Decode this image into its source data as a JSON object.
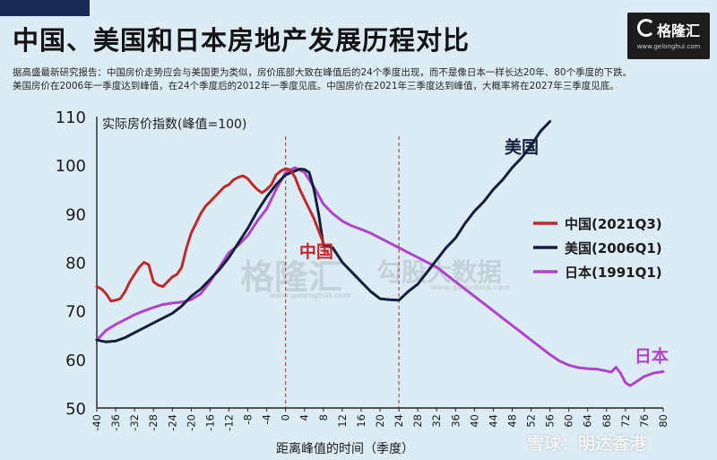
{
  "header": {
    "title": "中国、美国和日本房地产发展历程对比",
    "desc_line1": "据高盛最新研究报告：中国房价走势应会与美国更为类似，房价底部大致在峰值后的24个季度出现，而不是像日本一样长达20年、80个季度的下跌。",
    "desc_line2": "美国房价在2006年一季度达到峰值，在24个季度后的2012年一季度见底。中国房价在2021年三季度达到峰值，大概率将在2027年三季度见底。"
  },
  "logo": {
    "name": "格隆汇",
    "url": "www.gelonghui.com"
  },
  "watermarks": {
    "gelonghui": "格隆汇",
    "gelonghui_url": "www.gelonghui.com",
    "gogudata": "勾股大数据",
    "gogudata_url": "www.gogudata.com",
    "footer": "雪球：明达香港"
  },
  "chart_data": {
    "type": "line",
    "ylabel": "实际房价指数(峰值=100)",
    "xlabel": "距离峰值的时间（季度）",
    "xlim": [
      -40,
      80
    ],
    "ylim": [
      50,
      110
    ],
    "xticks": [
      -40,
      -36,
      -32,
      -28,
      -24,
      -20,
      -16,
      -12,
      -8,
      -4,
      0,
      4,
      8,
      12,
      16,
      20,
      24,
      28,
      32,
      36,
      40,
      44,
      48,
      52,
      56,
      60,
      64,
      68,
      72,
      76,
      80
    ],
    "yticks": [
      50,
      60,
      70,
      80,
      90,
      100,
      110
    ],
    "reference_lines_x": [
      0,
      24
    ],
    "colors": {
      "china": "#c0282d",
      "usa": "#141f3d",
      "japan": "#b043c8"
    },
    "series": [
      {
        "name": "中国(2021Q3)",
        "x": [
          -40,
          -39,
          -38,
          -37,
          -36,
          -35,
          -34,
          -33,
          -32,
          -31,
          -30,
          -29,
          -28,
          -27,
          -26,
          -25,
          -24,
          -23,
          -22,
          -21,
          -20,
          -19,
          -18,
          -17,
          -16,
          -15,
          -14,
          -13,
          -12,
          -11,
          -10,
          -9,
          -8,
          -7,
          -6,
          -5,
          -4,
          -3,
          -2,
          -1,
          0,
          1,
          2,
          3,
          4,
          5,
          6,
          7,
          8
        ],
        "y": [
          75,
          74.5,
          73.5,
          72,
          72.2,
          72.5,
          74,
          76,
          77.5,
          79,
          80,
          79.5,
          76,
          75.3,
          75,
          76,
          77,
          77.5,
          79,
          83,
          86,
          88,
          90,
          91.5,
          92.5,
          93.5,
          94.5,
          95.5,
          96,
          97,
          97.5,
          97.8,
          97.2,
          96,
          95,
          94.3,
          95,
          96,
          98,
          98.8,
          99.3,
          99,
          97.5,
          95,
          93,
          91,
          89,
          86.5,
          84
        ]
      },
      {
        "name": "美国(2006Q1)",
        "x": [
          -40,
          -38,
          -36,
          -34,
          -32,
          -30,
          -28,
          -26,
          -24,
          -22,
          -20,
          -18,
          -16,
          -14,
          -12,
          -10,
          -8,
          -6,
          -4,
          -2,
          0,
          2,
          3,
          4,
          5,
          6,
          7,
          8,
          10,
          12,
          14,
          16,
          18,
          20,
          22,
          24,
          26,
          28,
          30,
          32,
          34,
          36,
          38,
          40,
          42,
          44,
          46,
          48,
          50,
          52,
          54,
          56
        ],
        "y": [
          64,
          63.6,
          63.8,
          64.5,
          65.5,
          66.5,
          67.5,
          68.5,
          69.5,
          71,
          73,
          74.5,
          76.5,
          78.5,
          81,
          84,
          87,
          90.5,
          93.5,
          96,
          98,
          98.8,
          99.2,
          99.1,
          98.5,
          95,
          90,
          83.5,
          83,
          80,
          78,
          76,
          74,
          72.5,
          72.3,
          72.2,
          74,
          75.5,
          78,
          80.5,
          83,
          85,
          88,
          90.5,
          92.5,
          95,
          97,
          99.5,
          101.5,
          104,
          107,
          109
        ]
      },
      {
        "name": "日本(1991Q1)",
        "x": [
          -40,
          -38,
          -36,
          -34,
          -32,
          -30,
          -28,
          -26,
          -24,
          -22,
          -20,
          -18,
          -16,
          -14,
          -12,
          -10,
          -8,
          -6,
          -4,
          -2,
          0,
          2,
          4,
          6,
          8,
          10,
          12,
          14,
          16,
          18,
          20,
          22,
          24,
          26,
          28,
          30,
          32,
          34,
          36,
          38,
          40,
          42,
          44,
          46,
          48,
          50,
          52,
          54,
          56,
          58,
          60,
          62,
          64,
          66,
          68,
          69,
          70,
          71,
          72,
          73,
          74,
          76,
          78,
          80
        ],
        "y": [
          64,
          66,
          67.2,
          68.2,
          69.2,
          70,
          70.7,
          71.3,
          71.6,
          71.8,
          72.3,
          73.5,
          76,
          79,
          82,
          83.5,
          85.5,
          88.5,
          91,
          95,
          98.5,
          99.5,
          98.5,
          95.5,
          92,
          90,
          88.5,
          87.5,
          86.8,
          86,
          85,
          84,
          83,
          82,
          81,
          80,
          79,
          77.5,
          76,
          74.5,
          73,
          71.5,
          70,
          68.5,
          67,
          65.5,
          64,
          62.5,
          61,
          59.7,
          58.8,
          58.3,
          58.1,
          58,
          57.6,
          57.4,
          58.4,
          57.1,
          55.2,
          54.6,
          55.2,
          56.5,
          57.2,
          57.5
        ]
      }
    ],
    "legend": {
      "placement": "right",
      "entries": [
        {
          "label": "中国(2021Q3)",
          "color": "#c0282d"
        },
        {
          "label": "美国(2006Q1)",
          "color": "#141f3d"
        },
        {
          "label": "日本(1991Q1)",
          "color": "#b043c8"
        }
      ]
    },
    "annotations": [
      {
        "text": "中国",
        "color": "#c0282d",
        "x": 6.5,
        "y": 81
      },
      {
        "text": "美国",
        "color": "#141f3d",
        "x": 50,
        "y": 102.5
      },
      {
        "text": "日本",
        "color": "#b043c8",
        "x": 77.5,
        "y": 59.5
      }
    ]
  }
}
